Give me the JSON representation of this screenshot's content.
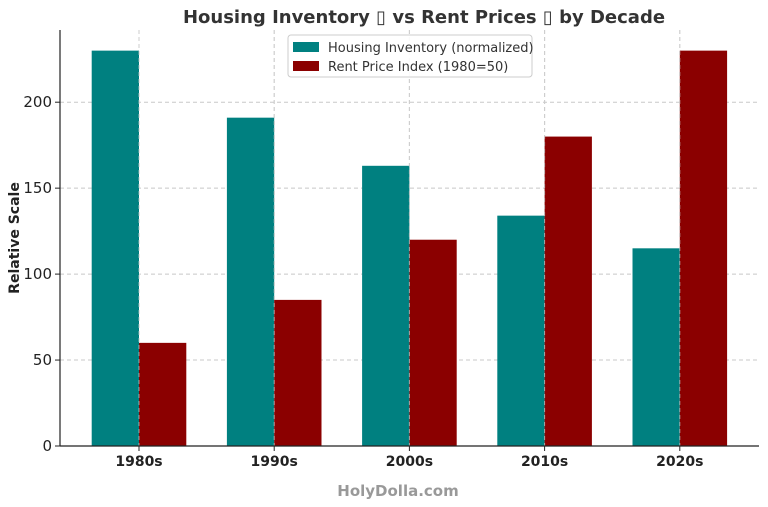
{
  "chart_data": {
    "type": "bar",
    "title": "Housing Inventory ▯ vs Rent Prices ▯ by Decade",
    "xlabel": "",
    "ylabel": "Relative Scale",
    "categories": [
      "1980s",
      "1990s",
      "2000s",
      "2010s",
      "2020s"
    ],
    "series": [
      {
        "name": "Housing Inventory (normalized)",
        "color": "#008080",
        "values": [
          230,
          191,
          163,
          134,
          115
        ]
      },
      {
        "name": "Rent Price Index (1980=50)",
        "color": "#8b0000",
        "values": [
          60,
          85,
          120,
          180,
          230
        ]
      }
    ],
    "ylim": [
      0,
      242
    ],
    "yticks": [
      0,
      50,
      100,
      150,
      200
    ],
    "grid": true,
    "legend_position": "top-center"
  },
  "watermark": "HolyDolla.com"
}
